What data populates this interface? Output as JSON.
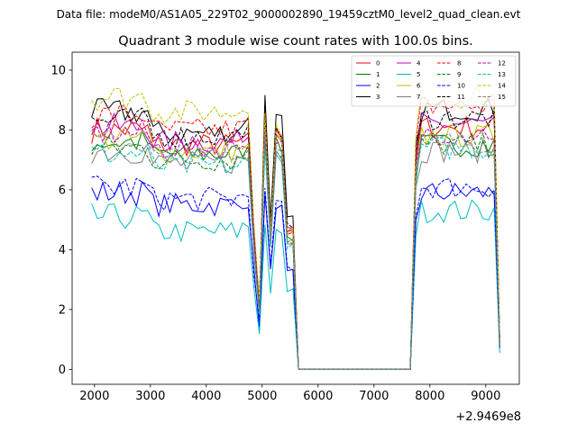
{
  "suptitle": "Data file: modeM0/AS1A05_229T02_9000002890_19459cztM0_level2_quad_clean.evt",
  "chart_data": {
    "type": "line",
    "title": "Quadrant 3 module wise count rates with 100.0s bins.",
    "xlabel": "",
    "ylabel": "",
    "x_offset_label": "+2.9469e8",
    "xlim": [
      1600,
      9600
    ],
    "ylim": [
      -0.5,
      10.6
    ],
    "x_ticks": [
      2000,
      3000,
      4000,
      5000,
      6000,
      7000,
      8000,
      9000
    ],
    "y_ticks": [
      0,
      2,
      4,
      6,
      8,
      10
    ],
    "legend_position": "top-right",
    "x": [
      1950,
      2050,
      2150,
      2250,
      2350,
      2450,
      2550,
      2650,
      2750,
      2850,
      2950,
      3050,
      3150,
      3250,
      3350,
      3450,
      3550,
      3650,
      3750,
      3850,
      3950,
      4050,
      4150,
      4250,
      4350,
      4450,
      4550,
      4650,
      4750,
      4850,
      4950,
      5050,
      5150,
      5250,
      5350,
      5450,
      5550,
      5650,
      7650,
      7750,
      7850,
      7950,
      8050,
      8150,
      8250,
      8350,
      8450,
      8550,
      8650,
      8750,
      8850,
      8950,
      9050,
      9150,
      9250
    ],
    "series": [
      {
        "name": "0",
        "color": "#ff0000",
        "dash": "solid",
        "base": 8.0,
        "dip": 7.5,
        "peak": 8.5,
        "high": 8.1,
        "tail": 0.9
      },
      {
        "name": "1",
        "color": "#008000",
        "dash": "solid",
        "base": 7.6,
        "dip": 7.2,
        "peak": 8.0,
        "high": 7.5,
        "tail": 0.8
      },
      {
        "name": "2",
        "color": "#0000ff",
        "dash": "solid",
        "base": 5.9,
        "dip": 5.5,
        "peak": 5.8,
        "high": 5.9,
        "tail": 0.7
      },
      {
        "name": "3",
        "color": "#000000",
        "dash": "solid",
        "base": 8.6,
        "dip": 7.9,
        "peak": 9.1,
        "high": 8.7,
        "tail": 1.0
      },
      {
        "name": "4",
        "color": "#bf00bf",
        "dash": "solid",
        "base": 8.1,
        "dip": 7.6,
        "peak": 8.4,
        "high": 8.2,
        "tail": 0.9
      },
      {
        "name": "5",
        "color": "#00bfbf",
        "dash": "solid",
        "base": 5.1,
        "dip": 4.6,
        "peak": 4.8,
        "high": 5.3,
        "tail": 0.55
      },
      {
        "name": "6",
        "color": "#bfbf00",
        "dash": "solid",
        "base": 7.7,
        "dip": 7.3,
        "peak": 8.2,
        "high": 7.8,
        "tail": 0.85
      },
      {
        "name": "7",
        "color": "#808080",
        "dash": "solid",
        "base": 7.3,
        "dip": 6.9,
        "peak": 7.7,
        "high": 7.3,
        "tail": 0.8
      },
      {
        "name": "8",
        "color": "#ff0000",
        "dash": "dashed",
        "base": 8.5,
        "dip": 8.0,
        "peak": 8.6,
        "high": 8.8,
        "tail": 0.95
      },
      {
        "name": "9",
        "color": "#008000",
        "dash": "dashed",
        "base": 7.4,
        "dip": 7.0,
        "peak": 7.8,
        "high": 7.5,
        "tail": 0.8
      },
      {
        "name": "10",
        "color": "#0000ff",
        "dash": "dashed",
        "base": 6.1,
        "dip": 5.7,
        "peak": 6.0,
        "high": 6.1,
        "tail": 0.7
      },
      {
        "name": "11",
        "color": "#000000",
        "dash": "dashed",
        "base": 8.3,
        "dip": 7.8,
        "peak": 8.6,
        "high": 8.4,
        "tail": 0.9
      },
      {
        "name": "12",
        "color": "#bf00bf",
        "dash": "dashed",
        "base": 7.9,
        "dip": 7.4,
        "peak": 8.1,
        "high": 7.9,
        "tail": 0.85
      },
      {
        "name": "13",
        "color": "#00bfbf",
        "dash": "dashed",
        "base": 7.2,
        "dip": 6.8,
        "peak": 7.6,
        "high": 7.4,
        "tail": 0.8
      },
      {
        "name": "14",
        "color": "#bfbf00",
        "dash": "dashed",
        "base": 9.1,
        "dip": 8.6,
        "peak": 8.5,
        "high": 9.1,
        "tail": 1.0
      },
      {
        "name": "15",
        "color": "#808080",
        "dash": "dashed",
        "base": 7.6,
        "dip": 7.1,
        "peak": 7.9,
        "high": 7.6,
        "tail": 0.8
      }
    ]
  }
}
